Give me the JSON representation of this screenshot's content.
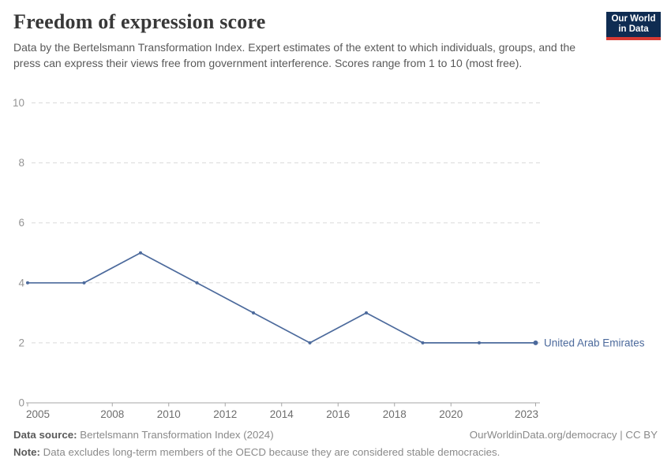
{
  "header": {
    "title": "Freedom of expression score",
    "subtitle": "Data by the Bertelsmann Transformation Index. Expert estimates of the extent to which individuals, groups, and the press can express their views free from government interference. Scores range from 1 to 10 (most free)."
  },
  "logo": {
    "line1": "Our World",
    "line2": "in Data",
    "bg_color": "#0f2c52",
    "accent_color": "#d73a33"
  },
  "chart_data": {
    "type": "line",
    "title": "Freedom of expression score",
    "x": [
      2005,
      2007,
      2009,
      2011,
      2013,
      2015,
      2017,
      2019,
      2021,
      2023
    ],
    "series": [
      {
        "name": "United Arab Emirates",
        "color": "#4C6A9C",
        "values": [
          4,
          4,
          5,
          4,
          3,
          2,
          3,
          2,
          2,
          2
        ]
      }
    ],
    "xlim": [
      2005,
      2023
    ],
    "ylim": [
      0,
      10
    ],
    "xticks": [
      2005,
      2008,
      2010,
      2012,
      2014,
      2016,
      2018,
      2020,
      2023
    ],
    "yticks": [
      0,
      2,
      4,
      6,
      8,
      10
    ],
    "grid": "horizontal-dashed",
    "legend": "end-of-line-label"
  },
  "footer": {
    "source_label": "Data source:",
    "source_text": " Bertelsmann Transformation Index (2024)",
    "link": "OurWorldinData.org/democracy | CC BY",
    "note_label": "Note:",
    "note_text": " Data excludes long-term members of the OECD because they are considered stable democracies."
  }
}
